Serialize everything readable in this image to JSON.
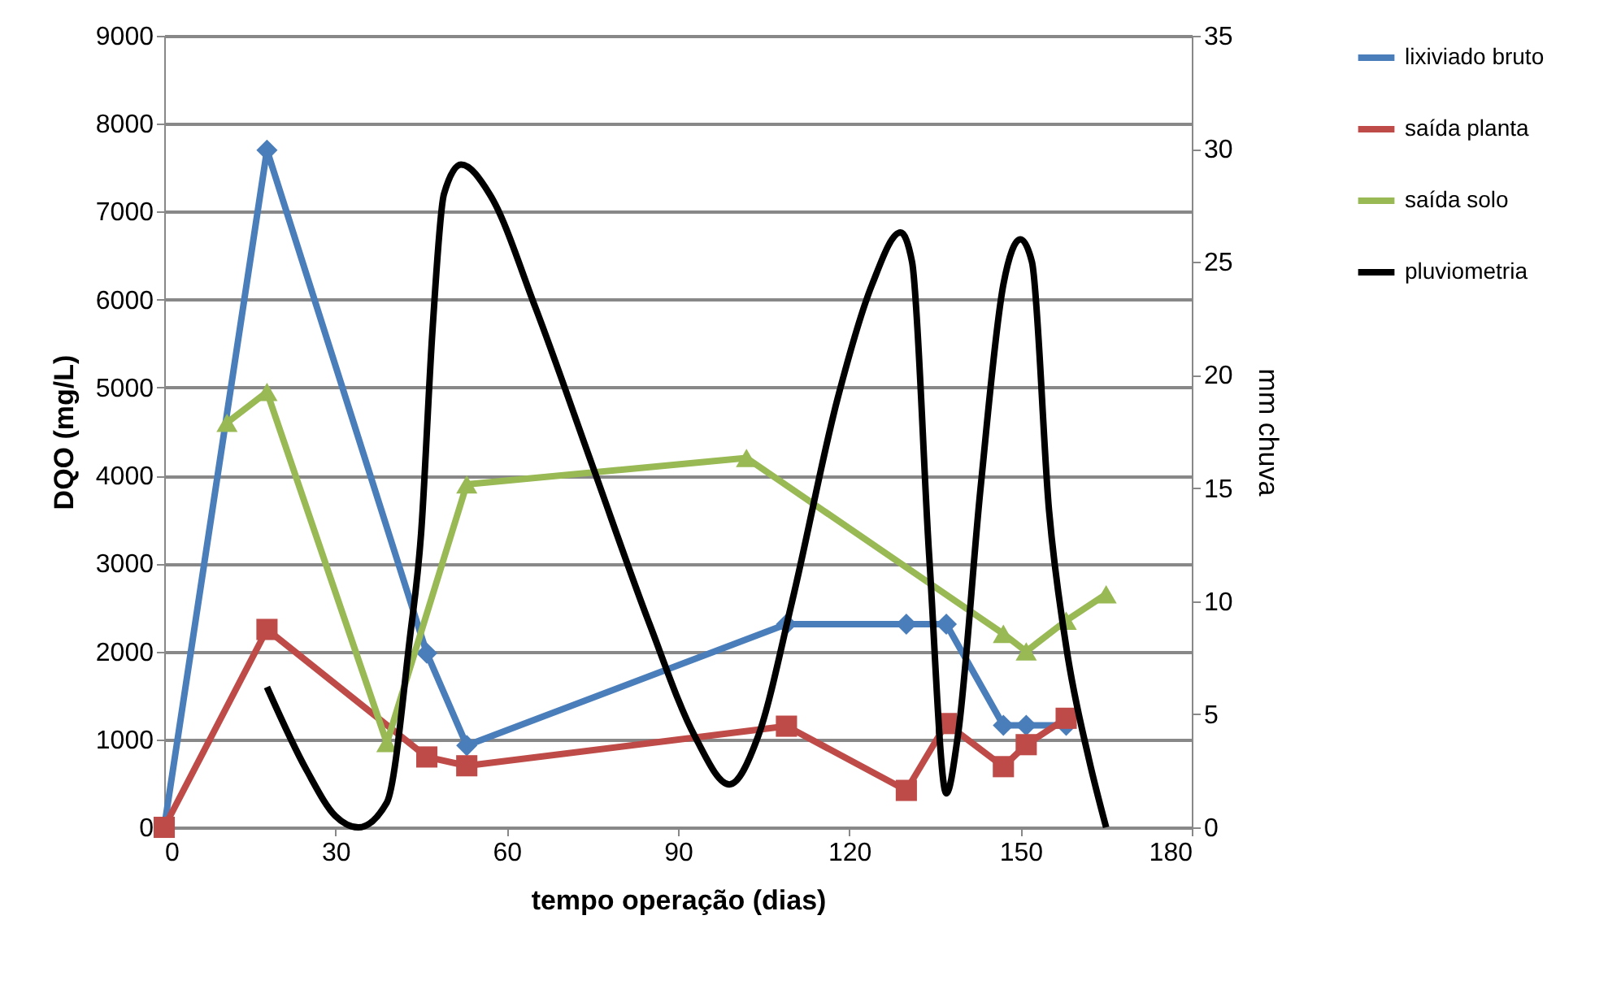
{
  "chart_data": {
    "type": "line",
    "xlabel": "tempo operação (dias)",
    "ylabel": "DQO (mg/L)",
    "y2label": "mm chuva",
    "xlim": [
      0,
      180
    ],
    "xticks": [
      0,
      30,
      60,
      90,
      120,
      150,
      180
    ],
    "ylim": [
      0,
      9000
    ],
    "yticks": [
      0,
      1000,
      2000,
      3000,
      4000,
      5000,
      6000,
      7000,
      8000,
      9000
    ],
    "y2lim": [
      0,
      35
    ],
    "y2ticks": [
      0,
      5,
      10,
      15,
      20,
      25,
      30,
      35
    ],
    "grid": "y",
    "legend": "right",
    "series": [
      {
        "name": "lixiviado bruto",
        "color": "#4a7ebb",
        "marker": "diamond",
        "x": [
          0,
          18,
          46,
          53,
          109,
          130,
          137,
          147,
          151,
          158
        ],
        "values": [
          0,
          7700,
          1980,
          930,
          2310,
          2310,
          2310,
          1160,
          1160,
          1160
        ]
      },
      {
        "name": "saída planta",
        "color": "#be4b48",
        "marker": "square",
        "x": [
          0,
          18,
          46,
          53,
          109,
          130,
          137,
          147,
          151,
          158
        ],
        "values": [
          0,
          2250,
          800,
          700,
          1150,
          420,
          1180,
          690,
          940,
          1240
        ]
      },
      {
        "name": "saída solo",
        "color": "#98b954",
        "marker": "triangle",
        "x": [
          11,
          18,
          39,
          53,
          102,
          147,
          151,
          158,
          165
        ],
        "values": [
          4600,
          4950,
          960,
          3900,
          4200,
          2200,
          2000,
          2350,
          2650
        ]
      },
      {
        "name": "pluviometria",
        "color": "#000000",
        "marker": "none",
        "axis": "y2",
        "x": [
          18,
          25,
          30,
          34,
          39,
          43,
          45,
          47,
          49,
          52,
          57,
          65,
          75,
          85,
          93,
          99,
          104,
          110,
          118,
          124,
          129,
          131,
          134,
          137,
          139,
          143,
          147,
          150,
          152,
          155,
          158,
          162,
          165
        ],
        "values": [
          6.2,
          2.5,
          0.5,
          0,
          1.1,
          8.3,
          13,
          22,
          28,
          29.3,
          28,
          23,
          16,
          9,
          4,
          1.9,
          4,
          10,
          19,
          24,
          26.3,
          25,
          12,
          1.5,
          4,
          15,
          24,
          26,
          25,
          14,
          8,
          3,
          0
        ]
      }
    ]
  }
}
